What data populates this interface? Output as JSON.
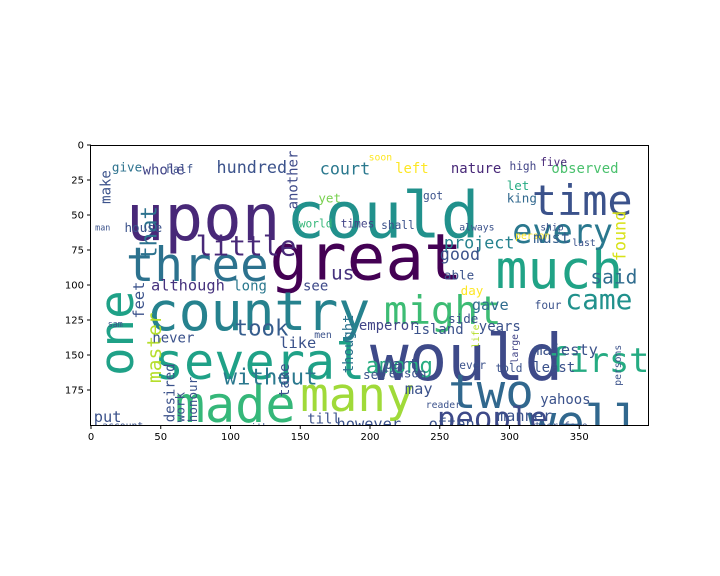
{
  "chart_data": {
    "type": "wordcloud",
    "title": "",
    "xlabel": "",
    "ylabel": "",
    "xlim": [
      0,
      400
    ],
    "ylim": [
      200,
      0
    ],
    "xticks": [
      0,
      50,
      100,
      150,
      200,
      250,
      300,
      350
    ],
    "yticks": [
      0,
      25,
      50,
      75,
      100,
      125,
      150,
      175
    ],
    "grid": false,
    "background": "#ffffff",
    "words": [
      {
        "text": "upon",
        "x": 25,
        "y": 68,
        "size": 46,
        "color": "#482878",
        "rot": 0
      },
      {
        "text": "could",
        "x": 140,
        "y": 66,
        "size": 46,
        "color": "#21918c",
        "rot": 0
      },
      {
        "text": "great",
        "x": 128,
        "y": 96,
        "size": 46,
        "color": "#440154",
        "rot": 0
      },
      {
        "text": "time",
        "x": 316,
        "y": 50,
        "size": 30,
        "color": "#3b528b",
        "rot": 0
      },
      {
        "text": "much",
        "x": 290,
        "y": 102,
        "size": 38,
        "color": "#20a386",
        "rot": 0
      },
      {
        "text": "three",
        "x": 25,
        "y": 97,
        "size": 34,
        "color": "#2c728e",
        "rot": 0
      },
      {
        "text": "country",
        "x": 40,
        "y": 132,
        "size": 38,
        "color": "#26828e",
        "rot": 0
      },
      {
        "text": "would",
        "x": 200,
        "y": 168,
        "size": 46,
        "color": "#3e4a89",
        "rot": 0
      },
      {
        "text": "several",
        "x": 45,
        "y": 167,
        "size": 36,
        "color": "#1fa187",
        "rot": 0
      },
      {
        "text": "made",
        "x": 60,
        "y": 198,
        "size": 36,
        "color": "#35b779",
        "rot": 0
      },
      {
        "text": "many",
        "x": 150,
        "y": 190,
        "size": 34,
        "color": "#a0da39",
        "rot": 0
      },
      {
        "text": "two",
        "x": 256,
        "y": 188,
        "size": 34,
        "color": "#31688e",
        "rot": 0
      },
      {
        "text": "well",
        "x": 313,
        "y": 210,
        "size": 34,
        "color": "#31688e",
        "rot": 0
      },
      {
        "text": "one",
        "x": 30,
        "y": 165,
        "size": 34,
        "color": "#1fa187",
        "rot": -90
      },
      {
        "text": "might",
        "x": 210,
        "y": 128,
        "size": 28,
        "color": "#3dbc74",
        "rot": 0
      },
      {
        "text": "every",
        "x": 302,
        "y": 70,
        "size": 24,
        "color": "#2a788e",
        "rot": 0
      },
      {
        "text": "came",
        "x": 340,
        "y": 117,
        "size": 20,
        "color": "#21918c",
        "rot": 0
      },
      {
        "text": "first",
        "x": 328,
        "y": 162,
        "size": 24,
        "color": "#25ab82",
        "rot": 0
      },
      {
        "text": "people",
        "x": 248,
        "y": 203,
        "size": 22,
        "color": "#3e4a89",
        "rot": 0
      },
      {
        "text": "little",
        "x": 75,
        "y": 79,
        "size": 20,
        "color": "#482878",
        "rot": 0
      },
      {
        "text": "that",
        "x": 47,
        "y": 82,
        "size": 16,
        "color": "#2c728e",
        "rot": -90
      },
      {
        "text": "master",
        "x": 50,
        "y": 170,
        "size": 14,
        "color": "#b5de2b",
        "rot": -90
      },
      {
        "text": "among",
        "x": 197,
        "y": 163,
        "size": 16,
        "color": "#27ad81",
        "rot": 0
      },
      {
        "text": "without",
        "x": 95,
        "y": 171,
        "size": 16,
        "color": "#2a788e",
        "rot": 0
      },
      {
        "text": "took",
        "x": 103,
        "y": 136,
        "size": 16,
        "color": "#365d8d",
        "rot": 0
      },
      {
        "text": "said",
        "x": 358,
        "y": 99,
        "size": 14,
        "color": "#2f6c8e",
        "rot": 0
      },
      {
        "text": "found",
        "x": 383,
        "y": 83,
        "size": 12,
        "color": "#d8e219",
        "rot": -90
      },
      {
        "text": "us",
        "x": 172,
        "y": 96,
        "size": 14,
        "color": "#46327e",
        "rot": 0
      },
      {
        "text": "hundred",
        "x": 90,
        "y": 20,
        "size": 12,
        "color": "#3b528b",
        "rot": 0
      },
      {
        "text": "court",
        "x": 164,
        "y": 21,
        "size": 12,
        "color": "#2a788e",
        "rot": 0
      },
      {
        "text": "left",
        "x": 218,
        "y": 20,
        "size": 10,
        "color": "#fde725",
        "rot": 0
      },
      {
        "text": "nature",
        "x": 258,
        "y": 20,
        "size": 10,
        "color": "#482878",
        "rot": 0
      },
      {
        "text": "high",
        "x": 300,
        "y": 18,
        "size": 8,
        "color": "#414487",
        "rot": 0
      },
      {
        "text": "observed",
        "x": 330,
        "y": 20,
        "size": 10,
        "color": "#4ac16d",
        "rot": 0
      },
      {
        "text": "give",
        "x": 15,
        "y": 19,
        "size": 9,
        "color": "#2c728e",
        "rot": 0
      },
      {
        "text": "half",
        "x": 54,
        "y": 20,
        "size": 8,
        "color": "#3b528b",
        "rot": 0
      },
      {
        "text": "whole",
        "x": 37,
        "y": 21,
        "size": 10,
        "color": "#414487",
        "rot": 0
      },
      {
        "text": "make",
        "x": 14,
        "y": 42,
        "size": 10,
        "color": "#3b528b",
        "rot": -90
      },
      {
        "text": "another",
        "x": 148,
        "y": 46,
        "size": 10,
        "color": "#3e4a89",
        "rot": -90
      },
      {
        "text": "yet",
        "x": 163,
        "y": 41,
        "size": 9,
        "color": "#7ad151",
        "rot": 0
      },
      {
        "text": "got",
        "x": 238,
        "y": 39,
        "size": 8,
        "color": "#3b528b",
        "rot": 0
      },
      {
        "text": "king",
        "x": 298,
        "y": 41,
        "size": 9,
        "color": "#31688e",
        "rot": 0
      },
      {
        "text": "let",
        "x": 298,
        "y": 32,
        "size": 9,
        "color": "#25ab82",
        "rot": 0
      },
      {
        "text": "five",
        "x": 322,
        "y": 15,
        "size": 8,
        "color": "#482878",
        "rot": 0
      },
      {
        "text": "soon",
        "x": 199,
        "y": 11,
        "size": 7,
        "color": "#fde725",
        "rot": 0
      },
      {
        "text": "house",
        "x": 24,
        "y": 62,
        "size": 9,
        "color": "#3b528b",
        "rot": 0
      },
      {
        "text": "world",
        "x": 149,
        "y": 59,
        "size": 8,
        "color": "#35b779",
        "rot": 0
      },
      {
        "text": "times",
        "x": 179,
        "y": 59,
        "size": 8,
        "color": "#414487",
        "rot": 0
      },
      {
        "text": "shall",
        "x": 208,
        "y": 60,
        "size": 8,
        "color": "#3b528b",
        "rot": 0
      },
      {
        "text": "always",
        "x": 264,
        "y": 61,
        "size": 7,
        "color": "#3b528b",
        "rot": 0
      },
      {
        "text": "person",
        "x": 304,
        "y": 67,
        "size": 7,
        "color": "#fde725",
        "rot": 0
      },
      {
        "text": "ship",
        "x": 322,
        "y": 61,
        "size": 7,
        "color": "#3b528b",
        "rot": 0
      },
      {
        "text": "man",
        "x": 3,
        "y": 61,
        "size": 6,
        "color": "#3b528b",
        "rot": 0
      },
      {
        "text": "last",
        "x": 345,
        "y": 72,
        "size": 7,
        "color": "#3b528b",
        "rot": 0
      },
      {
        "text": "project",
        "x": 253,
        "y": 74,
        "size": 12,
        "color": "#26828e",
        "rot": 0
      },
      {
        "text": "must",
        "x": 317,
        "y": 70,
        "size": 11,
        "color": "#355f8d",
        "rot": 0
      },
      {
        "text": "good",
        "x": 250,
        "y": 82,
        "size": 12,
        "color": "#3b528b",
        "rot": 0
      },
      {
        "text": "able",
        "x": 253,
        "y": 96,
        "size": 9,
        "color": "#3b528b",
        "rot": 0
      },
      {
        "text": "although",
        "x": 43,
        "y": 104,
        "size": 11,
        "color": "#46327e",
        "rot": 0
      },
      {
        "text": "long",
        "x": 102,
        "y": 104,
        "size": 10,
        "color": "#2a788e",
        "rot": 0
      },
      {
        "text": "see",
        "x": 152,
        "y": 104,
        "size": 10,
        "color": "#3e4a89",
        "rot": 0
      },
      {
        "text": "day",
        "x": 265,
        "y": 107,
        "size": 9,
        "color": "#fde725",
        "rot": 0
      },
      {
        "text": "gave",
        "x": 273,
        "y": 118,
        "size": 11,
        "color": "#2f6c8e",
        "rot": 0
      },
      {
        "text": "four",
        "x": 318,
        "y": 117,
        "size": 8,
        "color": "#3b528b",
        "rot": 0
      },
      {
        "text": "side",
        "x": 256,
        "y": 127,
        "size": 9,
        "color": "#3b528b",
        "rot": 0
      },
      {
        "text": "emperor",
        "x": 192,
        "y": 132,
        "size": 10,
        "color": "#414487",
        "rot": 0
      },
      {
        "text": "island",
        "x": 231,
        "y": 135,
        "size": 10,
        "color": "#3b528b",
        "rot": 0
      },
      {
        "text": "years",
        "x": 278,
        "y": 133,
        "size": 10,
        "color": "#3b528b",
        "rot": 0
      },
      {
        "text": "men",
        "x": 160,
        "y": 138,
        "size": 7,
        "color": "#3b528b",
        "rot": 0
      },
      {
        "text": "sam",
        "x": 12,
        "y": 130,
        "size": 6,
        "color": "#3b528b",
        "rot": 0
      },
      {
        "text": "feet",
        "x": 38,
        "y": 124,
        "size": 11,
        "color": "#3b528b",
        "rot": -90
      },
      {
        "text": "never",
        "x": 44,
        "y": 141,
        "size": 10,
        "color": "#3b528b",
        "rot": 0
      },
      {
        "text": "like",
        "x": 135,
        "y": 145,
        "size": 11,
        "color": "#3b528b",
        "rot": 0
      },
      {
        "text": "thought",
        "x": 188,
        "y": 163,
        "size": 10,
        "color": "#2c728e",
        "rot": -90
      },
      {
        "text": "part",
        "x": 210,
        "y": 160,
        "size": 10,
        "color": "#3b528b",
        "rot": 0
      },
      {
        "text": "life",
        "x": 278,
        "y": 145,
        "size": 7,
        "color": "#b5de2b",
        "rot": -90
      },
      {
        "text": "large",
        "x": 306,
        "y": 156,
        "size": 7,
        "color": "#414487",
        "rot": -90
      },
      {
        "text": "majesty",
        "x": 317,
        "y": 150,
        "size": 11,
        "color": "#3b528b",
        "rot": 0
      },
      {
        "text": "least",
        "x": 317,
        "y": 162,
        "size": 10,
        "color": "#3b528b",
        "rot": 0
      },
      {
        "text": "ever",
        "x": 264,
        "y": 160,
        "size": 8,
        "color": "#3b528b",
        "rot": 0
      },
      {
        "text": "told",
        "x": 290,
        "y": 162,
        "size": 8,
        "color": "#3b528b",
        "rot": 0
      },
      {
        "text": "persons",
        "x": 380,
        "y": 172,
        "size": 7,
        "color": "#3b528b",
        "rot": -90
      },
      {
        "text": "take",
        "x": 142,
        "y": 180,
        "size": 10,
        "color": "#3b528b",
        "rot": -90
      },
      {
        "text": "set",
        "x": 195,
        "y": 167,
        "size": 9,
        "color": "#3b528b",
        "rot": 0
      },
      {
        "text": "reason",
        "x": 208,
        "y": 166,
        "size": 9,
        "color": "#3b528b",
        "rot": 0
      },
      {
        "text": "may",
        "x": 225,
        "y": 178,
        "size": 11,
        "color": "#3b528b",
        "rot": 0
      },
      {
        "text": "yahoos",
        "x": 322,
        "y": 185,
        "size": 10,
        "color": "#3b528b",
        "rot": 0
      },
      {
        "text": "reader",
        "x": 240,
        "y": 188,
        "size": 7,
        "color": "#3b528b",
        "rot": 0
      },
      {
        "text": "put",
        "x": 2,
        "y": 198,
        "size": 11,
        "color": "#3b528b",
        "rot": 0
      },
      {
        "text": "desired",
        "x": 60,
        "y": 198,
        "size": 10,
        "color": "#3b528b",
        "rot": -90
      },
      {
        "text": "work",
        "x": 67,
        "y": 198,
        "size": 9,
        "color": "#3b528b",
        "rot": -90
      },
      {
        "text": "honour",
        "x": 76,
        "y": 198,
        "size": 9,
        "color": "#3b528b",
        "rot": -90
      },
      {
        "text": "till",
        "x": 155,
        "y": 199,
        "size": 10,
        "color": "#3b528b",
        "rot": 0
      },
      {
        "text": "however",
        "x": 176,
        "y": 203,
        "size": 11,
        "color": "#3b528b",
        "rot": 0
      },
      {
        "text": "often",
        "x": 242,
        "y": 203,
        "size": 11,
        "color": "#3b528b",
        "rot": 0
      },
      {
        "text": "manner",
        "x": 291,
        "y": 197,
        "size": 11,
        "color": "#3b528b",
        "rot": 0
      },
      {
        "text": "account",
        "x": 8,
        "y": 203,
        "size": 7,
        "color": "#3b528b",
        "rot": 0
      },
      {
        "text": "neither",
        "x": 106,
        "y": 204,
        "size": 7,
        "color": "#3b528b",
        "rot": 0
      },
      {
        "text": "therefore",
        "x": 318,
        "y": 203,
        "size": 7,
        "color": "#3b528b",
        "rot": 0
      }
    ]
  }
}
